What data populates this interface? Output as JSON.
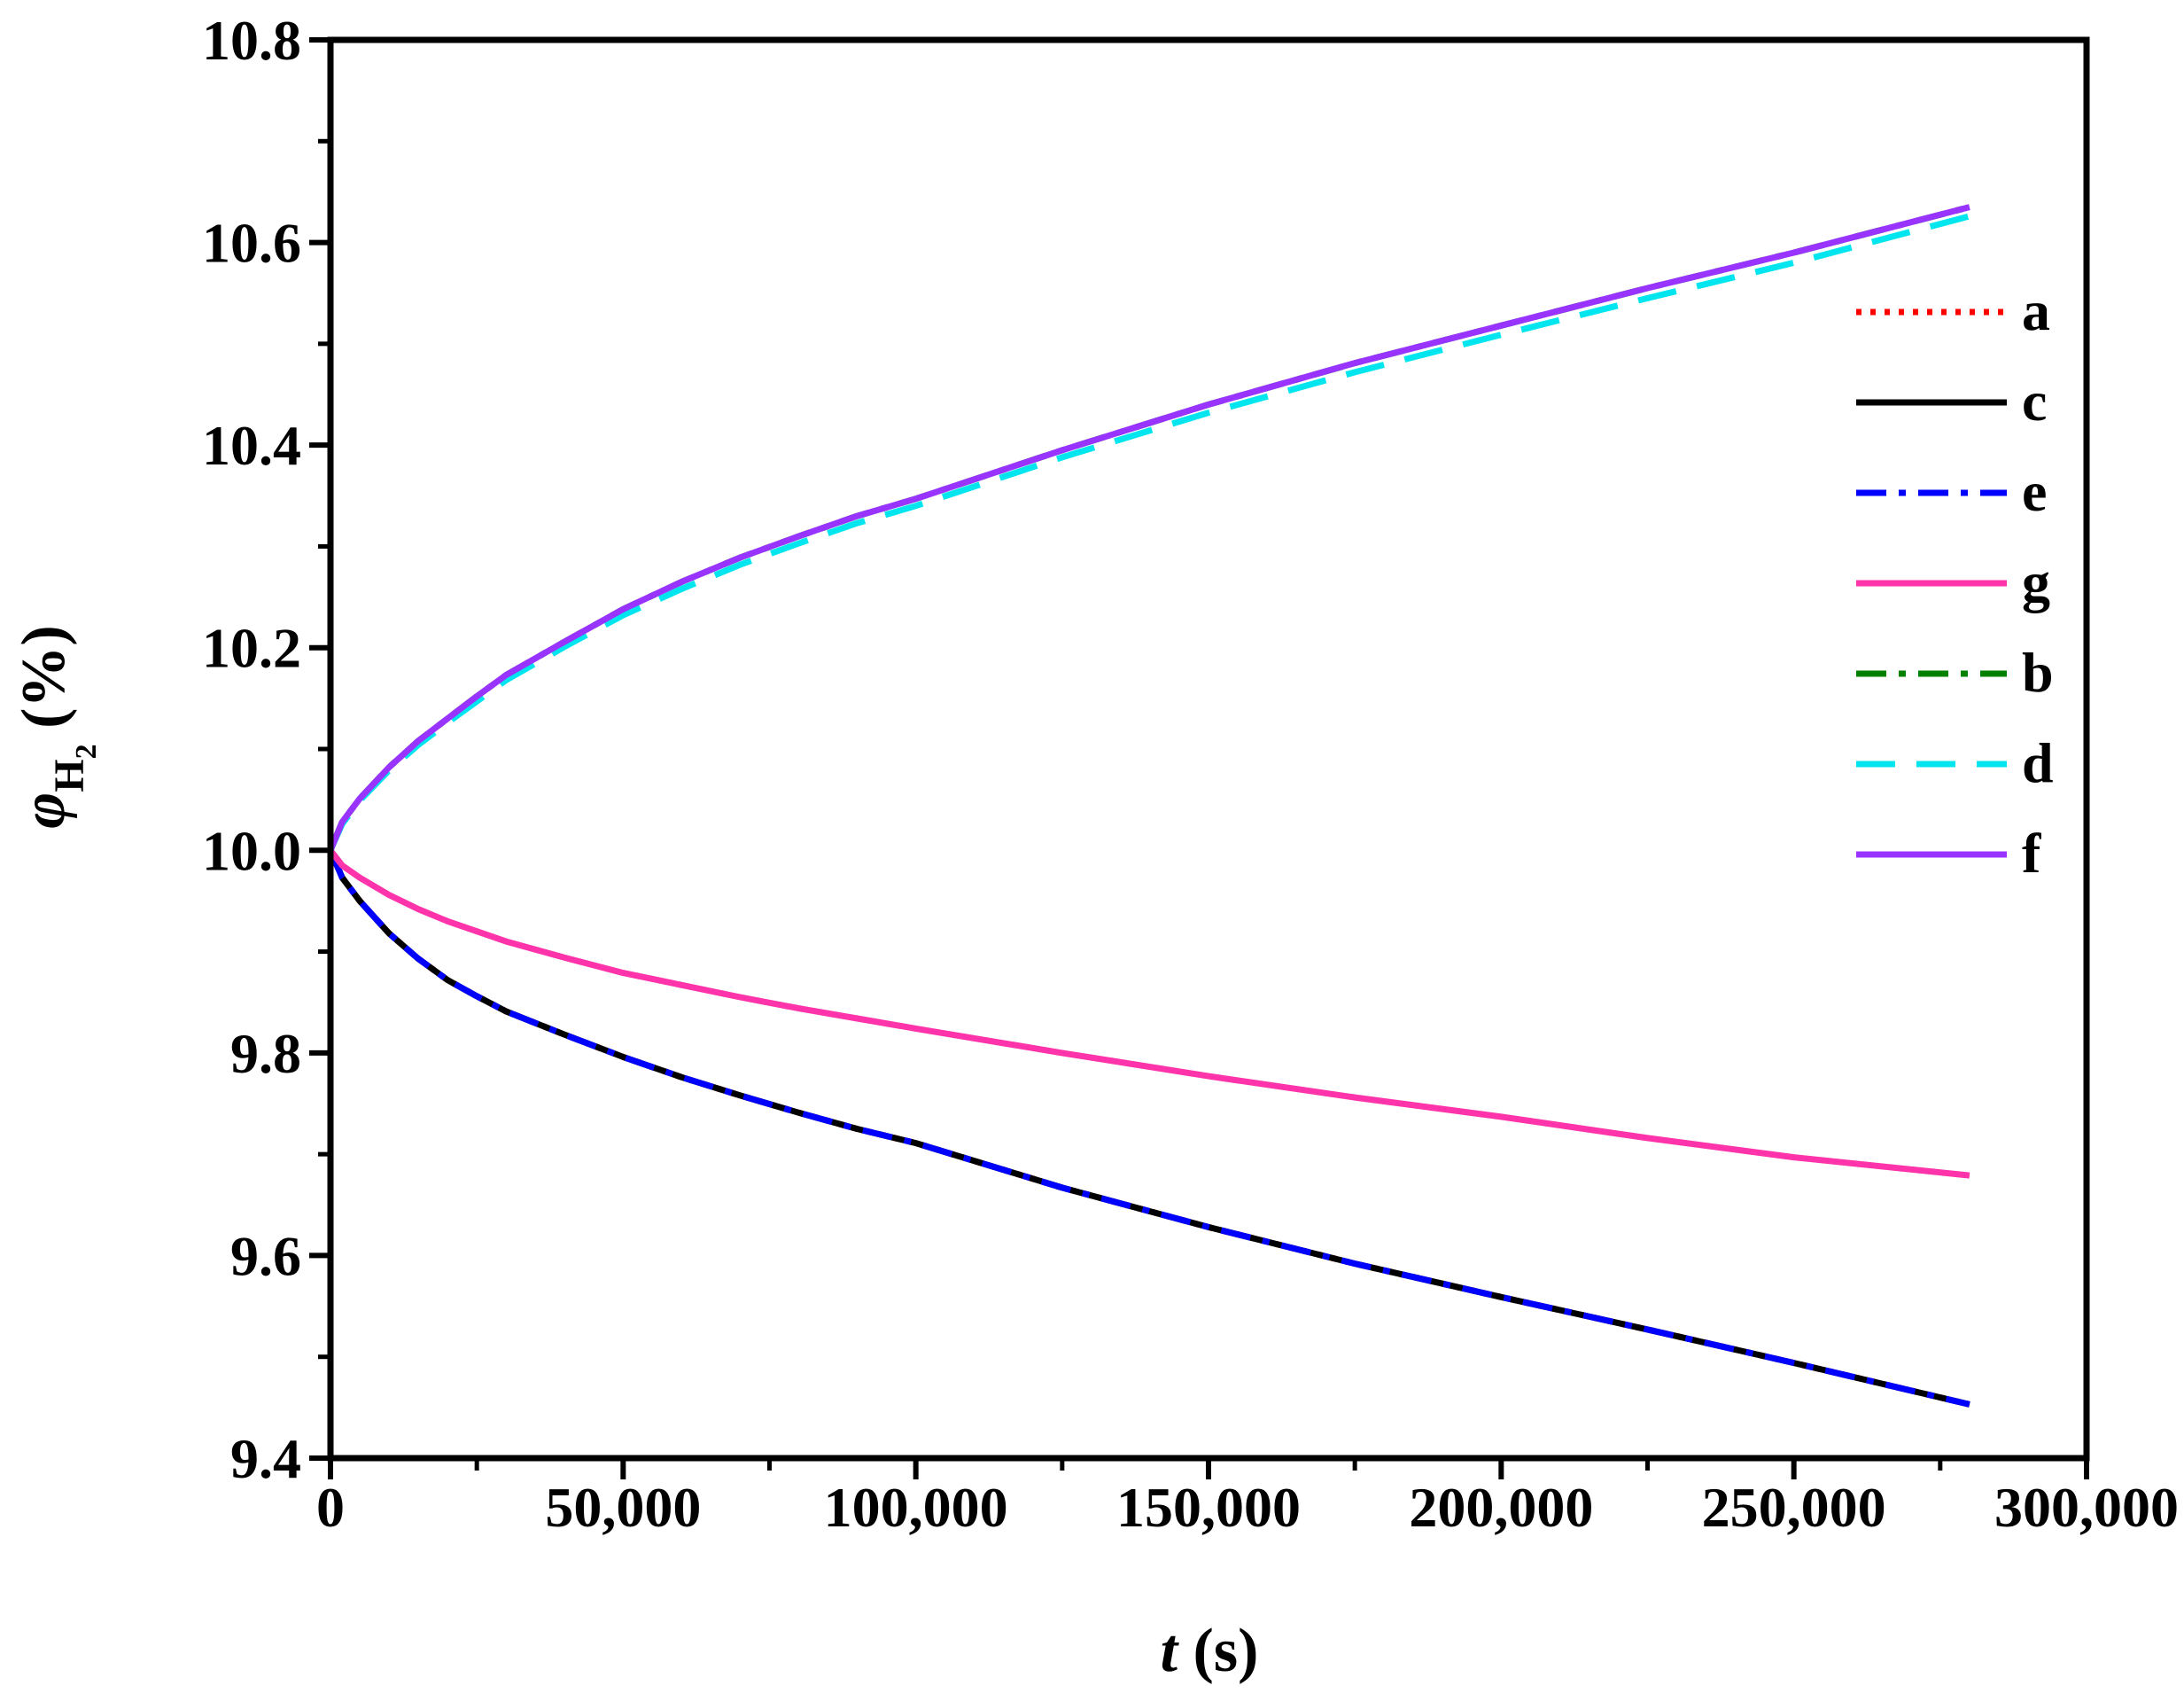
{
  "chart_data": {
    "type": "line",
    "title": "",
    "xlabel": {
      "italic": "t",
      "rest": " (s)"
    },
    "ylabel": {
      "symbol": "φ",
      "sub": "H",
      "subsub": "2",
      "rest": " (%)"
    },
    "xlim": [
      0,
      300000
    ],
    "ylim": [
      9.4,
      10.8
    ],
    "x_ticks": [
      0,
      50000,
      100000,
      150000,
      200000,
      250000,
      300000
    ],
    "x_tick_labels": [
      "0",
      "50,000",
      "100,000",
      "150,000",
      "200,000",
      "250,000",
      "300,000"
    ],
    "y_ticks": [
      9.4,
      9.6,
      9.8,
      10.0,
      10.2,
      10.4,
      10.6,
      10.8
    ],
    "y_tick_labels": [
      "9.4",
      "9.6",
      "9.8",
      "10.0",
      "10.2",
      "10.4",
      "10.6",
      "10.8"
    ],
    "grid": false,
    "legend_position": "top-right",
    "x": [
      0,
      2000,
      5000,
      10000,
      15000,
      20000,
      25000,
      30000,
      40000,
      50000,
      60000,
      70000,
      80000,
      90000,
      100000,
      125000,
      150000,
      175000,
      200000,
      225000,
      250000,
      280000
    ],
    "series": [
      {
        "name": "a",
        "color": "#ff0000",
        "dash": "dot",
        "values": [
          10.0,
          9.973,
          9.95,
          9.918,
          9.893,
          9.872,
          9.856,
          9.841,
          9.818,
          9.796,
          9.776,
          9.758,
          9.741,
          9.725,
          9.711,
          9.667,
          9.628,
          9.592,
          9.559,
          9.527,
          9.494,
          9.453
        ]
      },
      {
        "name": "c",
        "color": "#000000",
        "dash": "solid",
        "values": [
          10.0,
          9.973,
          9.95,
          9.918,
          9.893,
          9.872,
          9.856,
          9.841,
          9.818,
          9.796,
          9.776,
          9.758,
          9.741,
          9.725,
          9.711,
          9.667,
          9.628,
          9.592,
          9.559,
          9.527,
          9.494,
          9.453
        ]
      },
      {
        "name": "e",
        "color": "#0000ff",
        "dash": "dashdot",
        "values": [
          10.0,
          9.973,
          9.95,
          9.918,
          9.893,
          9.872,
          9.856,
          9.841,
          9.818,
          9.796,
          9.776,
          9.758,
          9.741,
          9.725,
          9.711,
          9.667,
          9.628,
          9.592,
          9.559,
          9.527,
          9.494,
          9.453
        ]
      },
      {
        "name": "g",
        "color": "#ff33aa",
        "dash": "solid",
        "values": [
          10.0,
          9.985,
          9.973,
          9.956,
          9.942,
          9.93,
          9.92,
          9.91,
          9.894,
          9.879,
          9.867,
          9.855,
          9.844,
          9.834,
          9.824,
          9.8,
          9.777,
          9.756,
          9.737,
          9.716,
          9.697,
          9.679
        ]
      },
      {
        "name": "b",
        "color": "#008000",
        "dash": "dashdot",
        "values": [
          10.0,
          10.028,
          10.051,
          10.082,
          10.108,
          10.13,
          10.152,
          10.173,
          10.206,
          10.238,
          10.265,
          10.289,
          10.31,
          10.33,
          10.347,
          10.395,
          10.44,
          10.481,
          10.518,
          10.555,
          10.59,
          10.635
        ]
      },
      {
        "name": "d",
        "color": "#00e5ee",
        "dash": "dash",
        "values": [
          10.0,
          10.026,
          10.049,
          10.079,
          10.104,
          10.126,
          10.147,
          10.168,
          10.201,
          10.232,
          10.258,
          10.282,
          10.303,
          10.323,
          10.34,
          10.388,
          10.432,
          10.472,
          10.509,
          10.545,
          10.58,
          10.626
        ]
      },
      {
        "name": "f",
        "color": "#9933ff",
        "dash": "solid",
        "values": [
          10.0,
          10.028,
          10.051,
          10.082,
          10.108,
          10.13,
          10.152,
          10.173,
          10.206,
          10.238,
          10.265,
          10.289,
          10.31,
          10.33,
          10.347,
          10.395,
          10.44,
          10.481,
          10.518,
          10.555,
          10.59,
          10.635
        ]
      }
    ]
  }
}
